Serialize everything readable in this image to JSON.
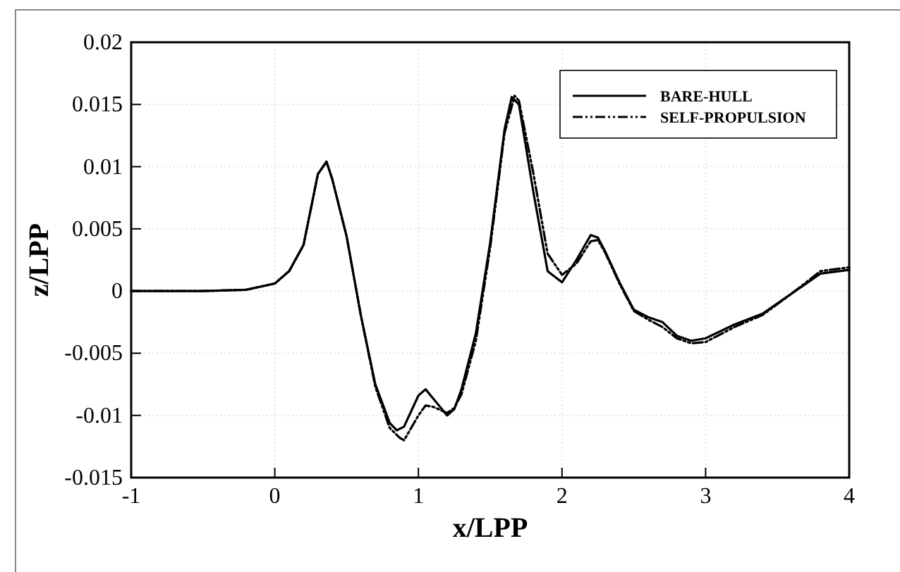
{
  "chart_data": {
    "type": "line",
    "xlabel": "x/LPP",
    "ylabel": "z/LPP",
    "xlim": [
      -1,
      4
    ],
    "ylim": [
      -0.015,
      0.02
    ],
    "xticks": [
      -1,
      0,
      1,
      2,
      3,
      4
    ],
    "yticks": [
      -0.015,
      -0.01,
      -0.005,
      0,
      0.005,
      0.01,
      0.015,
      0.02
    ],
    "grid": true,
    "legend": "top right",
    "marker": "none",
    "series": [
      {
        "name": "BARE-HULL",
        "color": "#000000",
        "line_style": "solid",
        "x": [
          -1,
          -0.5,
          -0.2,
          0,
          0.1,
          0.2,
          0.3,
          0.36,
          0.4,
          0.5,
          0.6,
          0.7,
          0.8,
          0.85,
          0.9,
          1,
          1.05,
          1.1,
          1.2,
          1.25,
          1.3,
          1.4,
          1.5,
          1.6,
          1.65,
          1.7,
          1.8,
          1.9,
          2,
          2.1,
          2.2,
          2.25,
          2.3,
          2.4,
          2.5,
          2.6,
          2.7,
          2.8,
          2.9,
          3,
          3.2,
          3.4,
          3.6,
          3.8,
          4
        ],
        "values": [
          0,
          0,
          0.0001,
          0.0006,
          0.0016,
          0.0037,
          0.0094,
          0.0104,
          0.009,
          0.0044,
          -0.002,
          -0.0075,
          -0.0106,
          -0.0112,
          -0.0109,
          -0.0084,
          -0.0079,
          -0.0086,
          -0.01,
          -0.0095,
          -0.0079,
          -0.0034,
          0.0039,
          0.013,
          0.0156,
          0.015,
          0.008,
          0.0016,
          0.0007,
          0.0025,
          0.0045,
          0.0043,
          0.0032,
          0.0007,
          -0.0015,
          -0.0021,
          -0.0025,
          -0.0036,
          -0.004,
          -0.0038,
          -0.0027,
          -0.0018,
          -0.0002,
          0.0014,
          0.0017
        ]
      },
      {
        "name": "SELF-PROPULSION",
        "color": "#000000",
        "line_style": "dashed",
        "x": [
          -1,
          -0.5,
          -0.2,
          0,
          0.1,
          0.2,
          0.3,
          0.36,
          0.4,
          0.5,
          0.6,
          0.7,
          0.8,
          0.87,
          0.9,
          1,
          1.05,
          1.1,
          1.2,
          1.25,
          1.3,
          1.4,
          1.5,
          1.6,
          1.67,
          1.7,
          1.8,
          1.9,
          2,
          2.1,
          2.2,
          2.25,
          2.3,
          2.4,
          2.5,
          2.6,
          2.7,
          2.8,
          2.9,
          3,
          3.2,
          3.4,
          3.6,
          3.8,
          4
        ],
        "values": [
          0,
          0,
          0.0001,
          0.0006,
          0.0016,
          0.0037,
          0.0094,
          0.0104,
          0.009,
          0.0044,
          -0.002,
          -0.0077,
          -0.011,
          -0.0118,
          -0.012,
          -0.01,
          -0.0092,
          -0.0093,
          -0.0098,
          -0.0094,
          -0.0083,
          -0.004,
          0.0035,
          0.0127,
          0.0157,
          0.0153,
          0.0095,
          0.003,
          0.0013,
          0.0022,
          0.004,
          0.0041,
          0.0031,
          0.0006,
          -0.0016,
          -0.0023,
          -0.0029,
          -0.0038,
          -0.0042,
          -0.0041,
          -0.0029,
          -0.0019,
          -0.0002,
          0.0016,
          0.0019
        ]
      }
    ]
  }
}
